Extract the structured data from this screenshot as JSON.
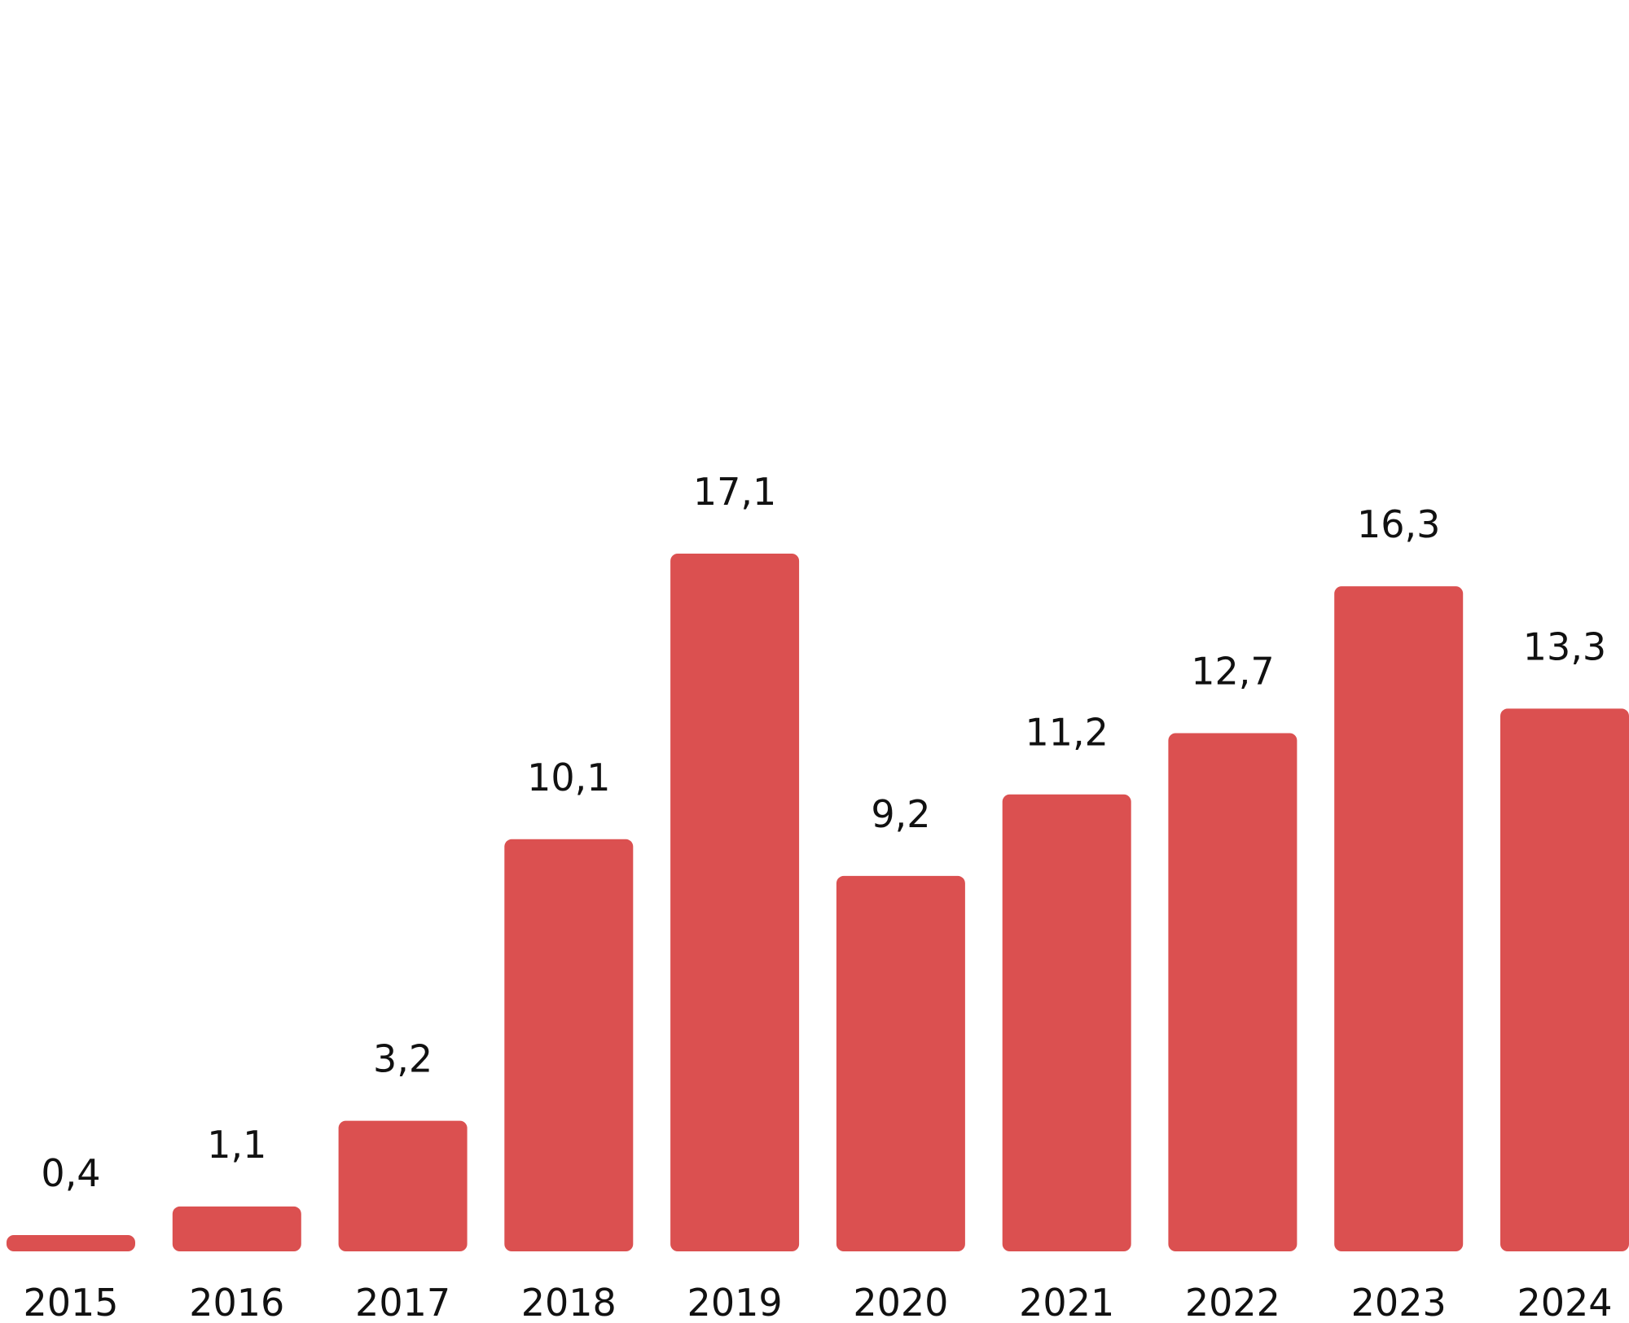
{
  "chart_data": {
    "type": "bar",
    "categories": [
      "2015",
      "2016",
      "2017",
      "2018",
      "2019",
      "2020",
      "2021",
      "2022",
      "2023",
      "2024"
    ],
    "values": [
      0.4,
      1.1,
      3.2,
      10.1,
      17.1,
      9.2,
      11.2,
      12.7,
      16.3,
      13.3
    ],
    "value_labels": [
      "0,4",
      "1,1",
      "3,2",
      "10,1",
      "17,1",
      "9,2",
      "11,2",
      "12,7",
      "16,3",
      "13,3"
    ],
    "ylim": [
      0,
      17.1
    ],
    "grid": false,
    "legend": "none",
    "bar_color": "#db5050",
    "text_color": "#111111"
  }
}
